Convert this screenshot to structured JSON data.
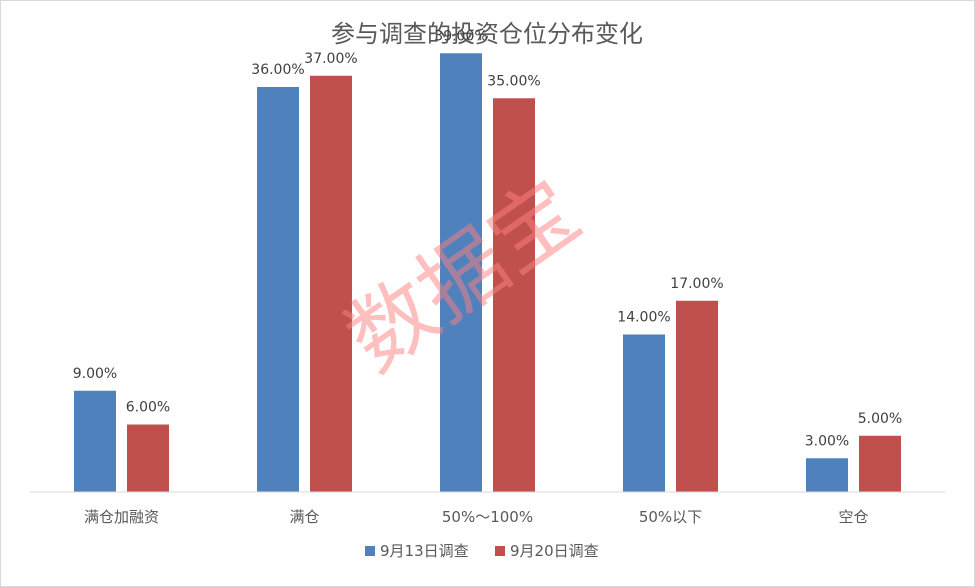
{
  "watermark": "数据宝",
  "chart_data": {
    "type": "bar",
    "title": "参与调查的投资仓位分布变化",
    "categories": [
      "满仓加融资",
      "满仓",
      "50%～100%",
      "50%以下",
      "空仓"
    ],
    "series": [
      {
        "name": "9月13日调查",
        "color": "#4f81bd",
        "values": [
          9.0,
          36.0,
          39.0,
          14.0,
          3.0
        ],
        "labels": [
          "9.00%",
          "36.00%",
          "39.00%",
          "14.00%",
          "3.00%"
        ]
      },
      {
        "name": "9月20日调查",
        "color": "#c0504d",
        "values": [
          6.0,
          37.0,
          35.0,
          17.0,
          5.0
        ],
        "labels": [
          "6.00%",
          "37.00%",
          "35.00%",
          "17.00%",
          "5.00%"
        ]
      }
    ],
    "ylim": [
      0,
      40
    ],
    "legend_position": "bottom",
    "grid": false
  }
}
